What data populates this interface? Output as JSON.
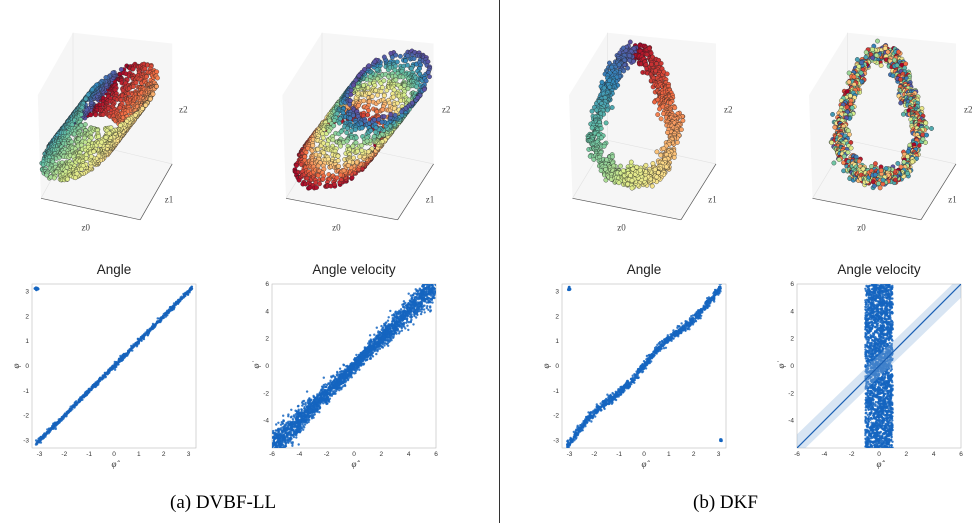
{
  "captions": {
    "left": "(a) DVBF-LL",
    "right": "(b) DKF"
  },
  "latent_plots": {
    "axis_labels": {
      "x": "z0",
      "y": "z1",
      "z": "z2"
    },
    "panels": [
      {
        "id": "dvbf-angle",
        "shape": "tilted-cylinder",
        "color_by": "angle"
      },
      {
        "id": "dvbf-velocity",
        "shape": "cylinder",
        "color_by": "velocity"
      },
      {
        "id": "dkf-angle",
        "shape": "ring",
        "color_by": "angle"
      },
      {
        "id": "dkf-velocity",
        "shape": "ring",
        "color_by": "velocity"
      }
    ]
  },
  "chart_data": [
    {
      "id": "dvbf-angle-scatter",
      "type": "scatter",
      "title": "Angle",
      "xlabel": "φ̂",
      "ylabel": "φ",
      "xlim": [
        -3.3,
        3.3
      ],
      "ylim": [
        -3.3,
        3.3
      ],
      "xticks": [
        -3,
        -2,
        -1,
        0,
        1,
        2,
        3
      ],
      "yticks": [
        -3,
        -2,
        -1,
        0,
        1,
        2,
        3
      ],
      "color": "#1565c0",
      "pattern": "identity-tight",
      "trend_line": {
        "x": [
          -3.14,
          3.14
        ],
        "y": [
          -3.14,
          3.14
        ]
      },
      "outliers": [
        {
          "x": -3.1,
          "y": 3.1
        }
      ]
    },
    {
      "id": "dvbf-velocity-scatter",
      "type": "scatter",
      "title": "Angle velocity",
      "xlabel": "φ̂̇",
      "ylabel": "φ̇",
      "xlim": [
        -6,
        6
      ],
      "ylim": [
        -6,
        6
      ],
      "xticks": [
        -6,
        -4,
        -2,
        0,
        2,
        4,
        6
      ],
      "yticks": [
        -4,
        -2,
        0,
        2,
        4,
        6
      ],
      "color": "#1565c0",
      "pattern": "identity-wide",
      "trend_line": null,
      "outliers": []
    },
    {
      "id": "dkf-angle-scatter",
      "type": "scatter",
      "title": "Angle",
      "xlabel": "φ̂",
      "ylabel": "φ",
      "xlim": [
        -3.3,
        3.3
      ],
      "ylim": [
        -3.3,
        3.3
      ],
      "xticks": [
        -3,
        -2,
        -1,
        0,
        1,
        2,
        3
      ],
      "yticks": [
        -3,
        -2,
        -1,
        0,
        1,
        2,
        3
      ],
      "color": "#1565c0",
      "pattern": "identity-wavy",
      "trend_line": null,
      "outliers": [
        {
          "x": -3.0,
          "y": 3.1
        },
        {
          "x": 3.1,
          "y": -3.0
        }
      ]
    },
    {
      "id": "dkf-velocity-scatter",
      "type": "scatter",
      "title": "Angle velocity",
      "xlabel": "φ̂̇",
      "ylabel": "φ̇",
      "xlim": [
        -6,
        6
      ],
      "ylim": [
        -6,
        6
      ],
      "xticks": [
        -6,
        -4,
        -2,
        0,
        2,
        4,
        6
      ],
      "yticks": [
        -4,
        -2,
        0,
        2,
        4,
        6
      ],
      "color": "#1565c0",
      "pattern": "vertical-band",
      "trend_line": {
        "x": [
          -6,
          6
        ],
        "y": [
          -6,
          6
        ]
      },
      "outliers": []
    }
  ]
}
